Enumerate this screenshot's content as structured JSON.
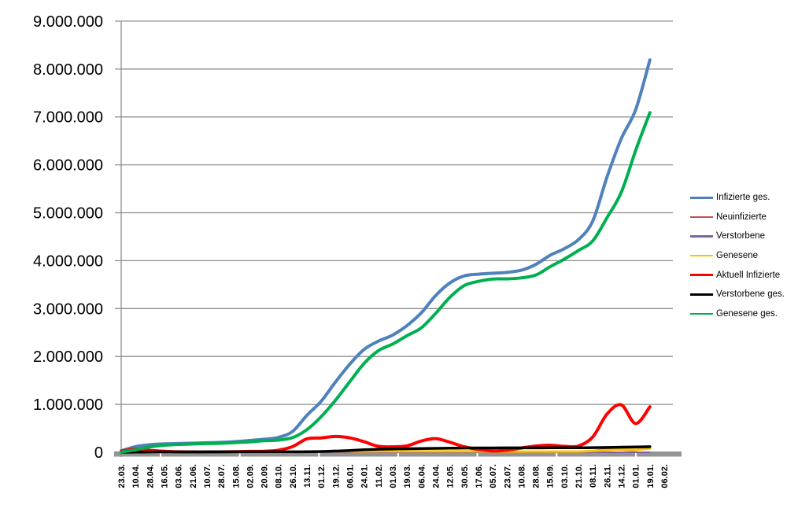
{
  "chart_data": {
    "type": "line",
    "title": "",
    "xlabel": "",
    "ylabel": "",
    "grid": "horizontal",
    "grid_color": "#8C8C8C",
    "axis_color": "#8C8C8C",
    "baseline_bar_color": "#949494",
    "background_color": "#ffffff",
    "legend_position": "right",
    "y_axis": {
      "min": 0,
      "max": 9000000,
      "step": 1000000,
      "thousands_separator": "."
    },
    "categories": [
      "23.03.",
      "10.04.",
      "28.04.",
      "16.05.",
      "03.06.",
      "21.06.",
      "10.07.",
      "28.07.",
      "15.08.",
      "02.09.",
      "20.09.",
      "08.10.",
      "26.10.",
      "13.11.",
      "01.12.",
      "19.12.",
      "06.01.",
      "24.01.",
      "11.02.",
      "01.03.",
      "19.03.",
      "06.04.",
      "24.04.",
      "12.05.",
      "30.05.",
      "17.06.",
      "05.07.",
      "23.07.",
      "10.08.",
      "28.08.",
      "15.09.",
      "03.10.",
      "21.10.",
      "08.11.",
      "26.11.",
      "14.12.",
      "01.01.",
      "19.01.",
      "06.02."
    ],
    "series": [
      {
        "name": "Infizierte ges.",
        "color": "#4F81BD",
        "stroke_width": 4,
        "values": [
          29000,
          118000,
          158000,
          176000,
          183000,
          190000,
          198000,
          207000,
          224000,
          246000,
          272000,
          310000,
          437000,
          773000,
          1067000,
          1470000,
          1841000,
          2148000,
          2320000,
          2447000,
          2645000,
          2910000,
          3270000,
          3535000,
          3682000,
          3718000,
          3737000,
          3757000,
          3800000,
          3920000,
          4110000,
          4250000,
          4440000,
          4830000,
          5750000,
          6550000,
          7150000,
          8190000,
          null
        ]
      },
      {
        "name": "Neuinfizierte",
        "color": "#C0504D",
        "stroke_width": 2,
        "values": [
          3000,
          5300,
          1800,
          900,
          500,
          400,
          350,
          600,
          1200,
          1400,
          1800,
          4100,
          11000,
          22500,
          18000,
          25000,
          20000,
          12000,
          8000,
          7500,
          13500,
          21000,
          23000,
          12000,
          5500,
          1500,
          650,
          1600,
          4200,
          9000,
          10500,
          7800,
          12000,
          33000,
          66000,
          51000,
          41000,
          120000,
          null
        ]
      },
      {
        "name": "Verstorbene",
        "color": "#8064A2",
        "stroke_width": 2,
        "values": [
          30,
          250,
          200,
          80,
          40,
          15,
          10,
          10,
          10,
          10,
          15,
          30,
          90,
          230,
          420,
          700,
          940,
          850,
          550,
          300,
          230,
          220,
          270,
          230,
          140,
          70,
          35,
          20,
          20,
          25,
          55,
          75,
          90,
          170,
          330,
          440,
          350,
          170,
          null
        ]
      },
      {
        "name": "Genesene",
        "color": "#FFC000",
        "stroke_width": 3,
        "values": [
          50,
          3200,
          3000,
          1400,
          700,
          450,
          350,
          500,
          700,
          900,
          1200,
          2300,
          7000,
          16000,
          17000,
          21000,
          21000,
          18000,
          20000,
          20000,
          21000,
          22000,
          22000,
          21000,
          20000,
          19000,
          16000,
          15000,
          15000,
          15000,
          15000,
          14000,
          15000,
          30000,
          45000,
          60000,
          55000,
          80000,
          null
        ]
      },
      {
        "name": "Aktuell Infizierte",
        "color": "#FF0000",
        "stroke_width": 4,
        "values": [
          24000,
          65000,
          40000,
          20000,
          10500,
          7500,
          6200,
          9000,
          12500,
          17500,
          21500,
          45000,
          120000,
          280000,
          300000,
          330000,
          300000,
          220000,
          125000,
          115000,
          135000,
          235000,
          285000,
          210000,
          115000,
          60000,
          28000,
          45000,
          90000,
          130000,
          147000,
          125000,
          132000,
          320000,
          800000,
          990000,
          600000,
          950000,
          null
        ]
      },
      {
        "name": "Verstorbene ges.",
        "color": "#000000",
        "stroke_width": 3.5,
        "values": [
          160,
          2700,
          6100,
          7900,
          8600,
          8900,
          9100,
          9200,
          9250,
          9300,
          9400,
          9600,
          10100,
          12500,
          17100,
          26000,
          36000,
          52000,
          64000,
          70500,
          74500,
          77500,
          81500,
          85500,
          88000,
          90000,
          91000,
          91500,
          91800,
          92200,
          92900,
          93800,
          95000,
          96900,
          100500,
          107000,
          112000,
          116000,
          null
        ]
      },
      {
        "name": "Genesene ges.",
        "color": "#00B050",
        "stroke_width": 4,
        "values": [
          4800,
          50300,
          112000,
          148000,
          164000,
          174000,
          183000,
          189000,
          202000,
          219000,
          241000,
          255000,
          307000,
          475000,
          745000,
          1089000,
          1475000,
          1856000,
          2121000,
          2260000,
          2434000,
          2598000,
          2899000,
          3235000,
          3479000,
          3568000,
          3618000,
          3621000,
          3640000,
          3698000,
          3870000,
          4031000,
          4213000,
          4413000,
          4900000,
          5430000,
          6300000,
          7090000,
          null
        ]
      }
    ]
  }
}
